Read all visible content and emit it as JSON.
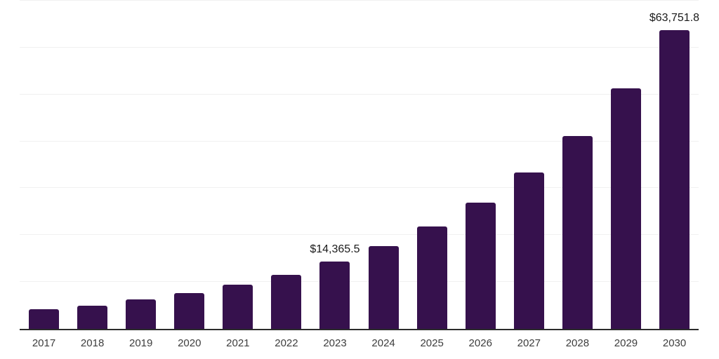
{
  "chart_data": {
    "type": "bar",
    "title": "",
    "xlabel": "",
    "ylabel": "",
    "categories": [
      "2017",
      "2018",
      "2019",
      "2020",
      "2021",
      "2022",
      "2023",
      "2024",
      "2025",
      "2026",
      "2027",
      "2028",
      "2029",
      "2030"
    ],
    "values": [
      4170,
      4920,
      6250,
      7600,
      9430,
      11570,
      14365.5,
      17620,
      21790,
      26920,
      33410,
      41210,
      51280,
      63751.8
    ],
    "data_labels": {
      "2023": "$14,365.5",
      "2030": "$63,751.8"
    },
    "ylim": [
      0,
      70000
    ],
    "gridline_step": 10000,
    "grid": "horizontal only, no y-axis tick labels",
    "legend": "none",
    "bar_color": "#36114d",
    "axis_line_color": "#2b2b2b",
    "gridline_color": "#f0f0f0",
    "data_label_color": "#1a1a1a",
    "tick_label_color": "#3d3d3d",
    "background_color": "#ffffff"
  }
}
